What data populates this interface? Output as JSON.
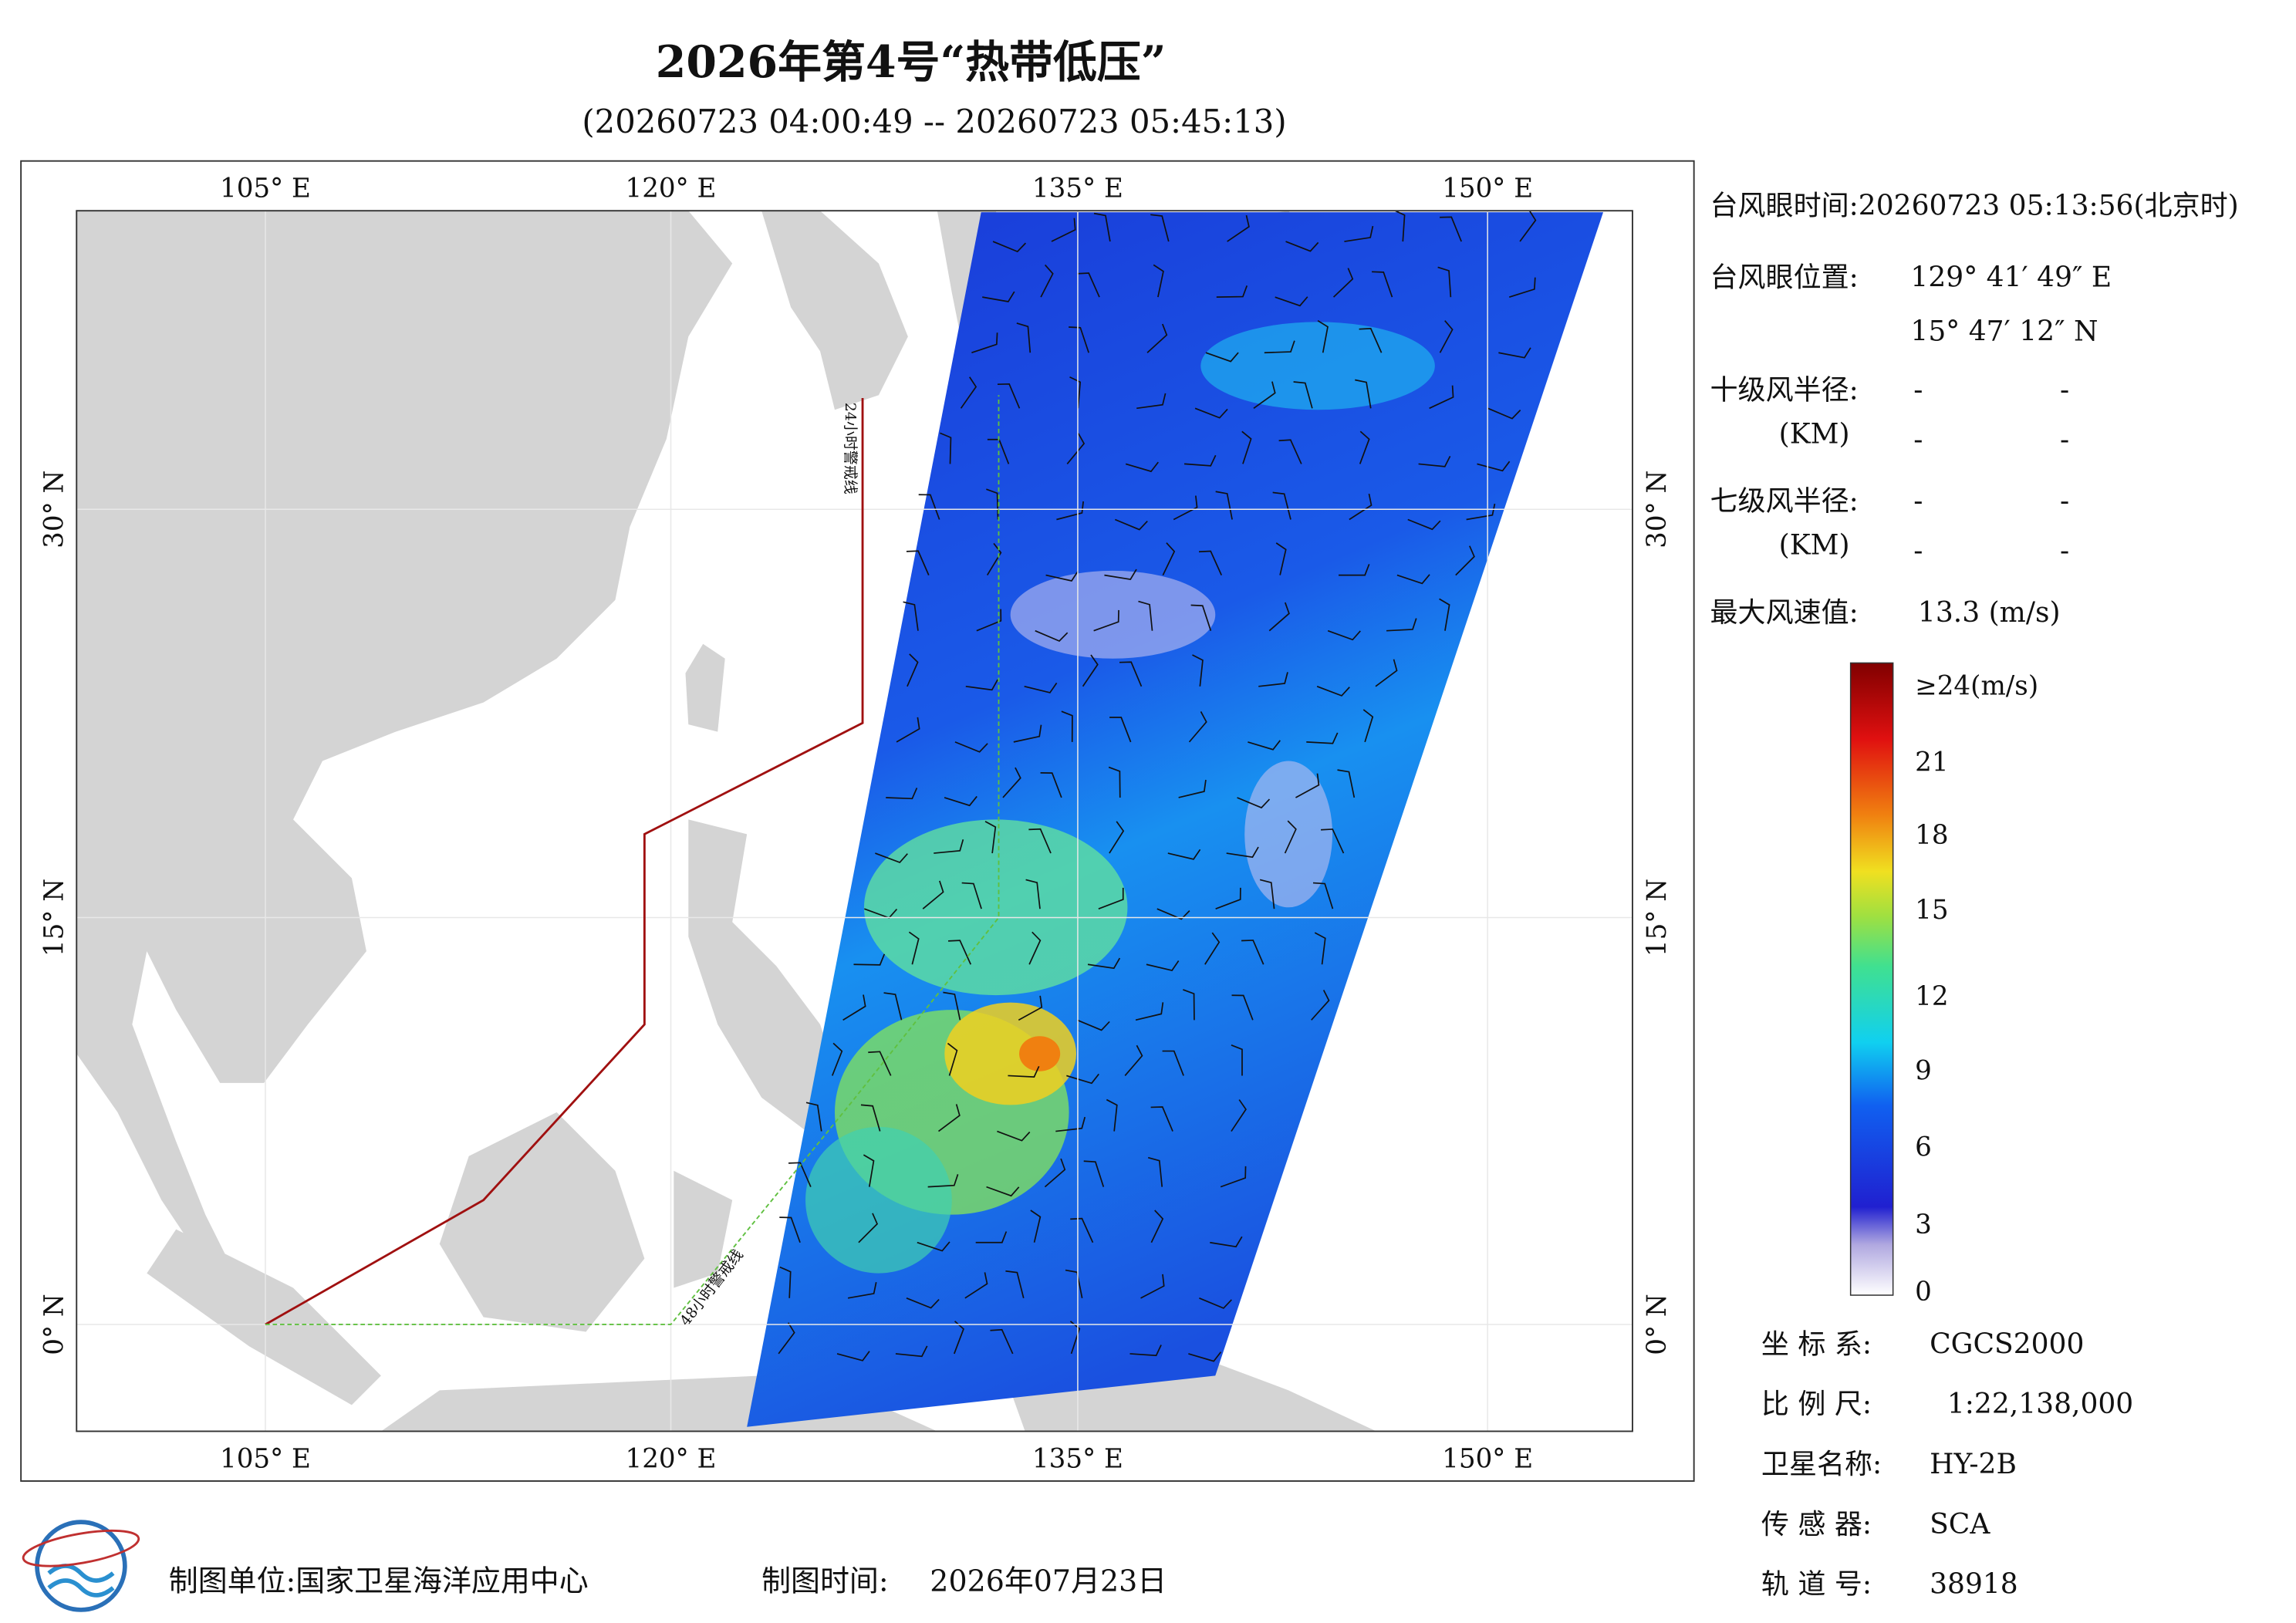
{
  "header": {
    "title": "2026年第4号“热带低压”",
    "subtitle": "(20260723 04:00:49 -- 20260723 05:45:13)"
  },
  "map": {
    "lon_labels": [
      "105° E",
      "120° E",
      "135° E",
      "150° E"
    ],
    "lat_labels": [
      "0° N",
      "15° N",
      "30° N"
    ],
    "warning_lines": [
      "24小时警戒线",
      "48小时警戒线"
    ]
  },
  "info": {
    "eye_time": "台风眼时间:20260723 05:13:56(北京时)",
    "eye_position_label": "台风眼位置:",
    "eye_lon": "129° 41′ 49″ E",
    "eye_lat": "15° 47′ 12″ N",
    "r10_label": "十级风半径:",
    "r7_label": "七级风半径:",
    "km": "(KM)",
    "dash": "-",
    "max_wind_label": "最大风速值:",
    "max_wind_value": "13.3  (m/s)"
  },
  "legend": {
    "labels": [
      "≥24(m/s)",
      "21",
      "18",
      "15",
      "12",
      "9",
      "6",
      "3",
      "0"
    ]
  },
  "meta": {
    "rows": [
      [
        "坐 标 系:",
        "CGCS2000"
      ],
      [
        "比 例 尺:",
        "1:22,138,000"
      ],
      [
        "卫星名称:",
        "HY-2B"
      ],
      [
        "传 感 器:",
        "SCA"
      ],
      [
        "轨 道 号:",
        "38918"
      ]
    ]
  },
  "footer": {
    "unit": "制图单位:国家卫星海洋应用中心",
    "time_label": "制图时间:",
    "time": "2026年07月23日"
  }
}
